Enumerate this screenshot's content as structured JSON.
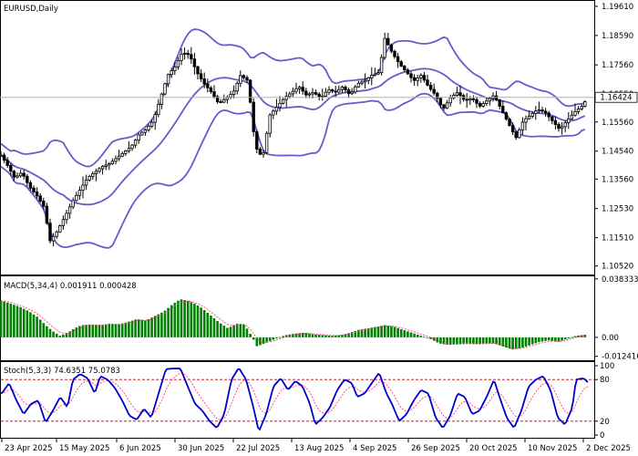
{
  "window": {
    "symbol_label": "EURUSD,Daily"
  },
  "colors": {
    "bull_candle": "#ffffff",
    "bear_candle": "#000000",
    "bollinger": "#6a5acd",
    "macd_hist": "#008000",
    "macd_signal": "#ff3c78",
    "stoch_main": "#0000cd",
    "stoch_signal": "#ff3c78",
    "stoch_levels": "#c00000",
    "price_tag_bg": "#ffffff"
  },
  "chart_data": [
    {
      "type": "candlestick",
      "title": "EURUSD,Daily",
      "ylim": [
        1.1022,
        1.198
      ],
      "y_ticks": [
        "1.19610",
        "1.18590",
        "1.17560",
        "1.16550",
        "1.15560",
        "1.14540",
        "1.13560",
        "1.12530",
        "1.11510",
        "1.10520"
      ],
      "current_price": "1.16424",
      "overlays": [
        "Bollinger Bands"
      ],
      "x_labels": [
        "23 Apr 2025",
        "15 May 2025",
        "6 Jun 2025",
        "30 Jun 2025",
        "22 Jul 2025",
        "13 Aug 2025",
        "4 Sep 2025",
        "26 Sep 2025",
        "20 Oct 2025",
        "10 Nov 2025",
        "2 Dec 2025"
      ],
      "close_path": [
        [
          1,
          1.144
        ],
        [
          8,
          1.1405
        ],
        [
          16,
          1.136
        ],
        [
          24,
          1.138
        ],
        [
          32,
          1.133
        ],
        [
          40,
          1.13
        ],
        [
          48,
          1.126
        ],
        [
          55,
          1.114
        ],
        [
          62,
          1.117
        ],
        [
          72,
          1.123
        ],
        [
          80,
          1.128
        ],
        [
          88,
          1.132
        ],
        [
          96,
          1.136
        ],
        [
          104,
          1.138
        ],
        [
          112,
          1.14
        ],
        [
          120,
          1.141
        ],
        [
          128,
          1.143
        ],
        [
          136,
          1.145
        ],
        [
          144,
          1.147
        ],
        [
          152,
          1.151
        ],
        [
          160,
          1.153
        ],
        [
          168,
          1.156
        ],
        [
          176,
          1.164
        ],
        [
          184,
          1.172
        ],
        [
          192,
          1.175
        ],
        [
          200,
          1.18
        ],
        [
          208,
          1.179
        ],
        [
          216,
          1.173
        ],
        [
          224,
          1.169
        ],
        [
          232,
          1.166
        ],
        [
          240,
          1.162
        ],
        [
          248,
          1.164
        ],
        [
          256,
          1.166
        ],
        [
          264,
          1.172
        ],
        [
          272,
          1.17
        ],
        [
          280,
          1.147
        ],
        [
          288,
          1.143
        ],
        [
          296,
          1.158
        ],
        [
          304,
          1.161
        ],
        [
          312,
          1.164
        ],
        [
          320,
          1.166
        ],
        [
          328,
          1.168
        ],
        [
          336,
          1.165
        ],
        [
          344,
          1.166
        ],
        [
          352,
          1.164
        ],
        [
          360,
          1.167
        ],
        [
          368,
          1.166
        ],
        [
          376,
          1.168
        ],
        [
          384,
          1.165
        ],
        [
          392,
          1.169
        ],
        [
          400,
          1.17
        ],
        [
          408,
          1.172
        ],
        [
          416,
          1.173
        ],
        [
          422,
          1.185
        ],
        [
          430,
          1.18
        ],
        [
          438,
          1.176
        ],
        [
          446,
          1.173
        ],
        [
          454,
          1.17
        ],
        [
          462,
          1.172
        ],
        [
          470,
          1.168
        ],
        [
          478,
          1.165
        ],
        [
          486,
          1.16
        ],
        [
          494,
          1.164
        ],
        [
          502,
          1.166
        ],
        [
          510,
          1.163
        ],
        [
          518,
          1.164
        ],
        [
          526,
          1.161
        ],
        [
          534,
          1.163
        ],
        [
          542,
          1.165
        ],
        [
          550,
          1.16
        ],
        [
          558,
          1.155
        ],
        [
          566,
          1.15
        ],
        [
          574,
          1.156
        ],
        [
          582,
          1.158
        ],
        [
          590,
          1.16
        ],
        [
          598,
          1.159
        ],
        [
          606,
          1.156
        ],
        [
          614,
          1.153
        ],
        [
          622,
          1.156
        ],
        [
          630,
          1.159
        ],
        [
          638,
          1.161
        ],
        [
          645,
          1.1642
        ]
      ]
    },
    {
      "type": "bar",
      "title": "MACD(5,34,4) 0.001911 0.000428",
      "series": [
        {
          "name": "MACD",
          "values": "histogram"
        },
        {
          "name": "Signal",
          "values": "line"
        }
      ],
      "ylim": [
        -0.015,
        0.04
      ],
      "y_ticks": [
        "0.038333",
        "0.00",
        "-0.012416"
      ],
      "values_path": [
        [
          2,
          0.024
        ],
        [
          12,
          0.022
        ],
        [
          22,
          0.02
        ],
        [
          32,
          0.017
        ],
        [
          42,
          0.013
        ],
        [
          50,
          0.008
        ],
        [
          58,
          0.004
        ],
        [
          66,
          0.001
        ],
        [
          74,
          0.003
        ],
        [
          82,
          0.006
        ],
        [
          90,
          0.008
        ],
        [
          100,
          0.0085
        ],
        [
          110,
          0.008
        ],
        [
          120,
          0.009
        ],
        [
          130,
          0.0085
        ],
        [
          140,
          0.01
        ],
        [
          150,
          0.012
        ],
        [
          160,
          0.011
        ],
        [
          170,
          0.014
        ],
        [
          180,
          0.017
        ],
        [
          190,
          0.022
        ],
        [
          198,
          0.025
        ],
        [
          206,
          0.024
        ],
        [
          214,
          0.022
        ],
        [
          222,
          0.019
        ],
        [
          230,
          0.015
        ],
        [
          240,
          0.01
        ],
        [
          250,
          0.006
        ],
        [
          260,
          0.009
        ],
        [
          268,
          0.0085
        ],
        [
          276,
          0.001
        ],
        [
          282,
          -0.006
        ],
        [
          290,
          -0.004
        ],
        [
          298,
          -0.002
        ],
        [
          306,
          0.0
        ],
        [
          314,
          0.0015
        ],
        [
          324,
          0.0025
        ],
        [
          334,
          0.003
        ],
        [
          344,
          0.002
        ],
        [
          354,
          0.0015
        ],
        [
          364,
          0.001
        ],
        [
          374,
          0.0015
        ],
        [
          384,
          0.003
        ],
        [
          394,
          0.005
        ],
        [
          404,
          0.006
        ],
        [
          414,
          0.007
        ],
        [
          422,
          0.008
        ],
        [
          432,
          0.007
        ],
        [
          442,
          0.005
        ],
        [
          452,
          0.003
        ],
        [
          462,
          0.001
        ],
        [
          472,
          -0.001
        ],
        [
          482,
          -0.004
        ],
        [
          492,
          -0.005
        ],
        [
          502,
          -0.0045
        ],
        [
          512,
          -0.004
        ],
        [
          522,
          -0.0045
        ],
        [
          532,
          -0.004
        ],
        [
          542,
          -0.004
        ],
        [
          552,
          -0.006
        ],
        [
          562,
          -0.008
        ],
        [
          572,
          -0.007
        ],
        [
          582,
          -0.005
        ],
        [
          592,
          -0.003
        ],
        [
          602,
          -0.002
        ],
        [
          612,
          -0.003
        ],
        [
          622,
          -0.001
        ],
        [
          632,
          0.001
        ],
        [
          644,
          0.0019
        ]
      ]
    },
    {
      "type": "line",
      "title": "Stoch(5,3,3) 74.6351 75.0783",
      "series": [
        {
          "name": "Main"
        },
        {
          "name": "Signal"
        }
      ],
      "ylim": [
        0,
        100
      ],
      "y_ticks": [
        "100",
        "80",
        "20",
        "0"
      ],
      "levels": [
        80,
        20
      ],
      "main_path": [
        [
          2,
          60
        ],
        [
          10,
          75
        ],
        [
          18,
          50
        ],
        [
          26,
          30
        ],
        [
          34,
          45
        ],
        [
          42,
          50
        ],
        [
          50,
          18
        ],
        [
          58,
          35
        ],
        [
          66,
          55
        ],
        [
          74,
          40
        ],
        [
          80,
          80
        ],
        [
          88,
          88
        ],
        [
          96,
          82
        ],
        [
          104,
          60
        ],
        [
          110,
          85
        ],
        [
          118,
          80
        ],
        [
          126,
          68
        ],
        [
          134,
          50
        ],
        [
          142,
          28
        ],
        [
          150,
          22
        ],
        [
          158,
          38
        ],
        [
          166,
          25
        ],
        [
          174,
          60
        ],
        [
          182,
          95
        ],
        [
          190,
          96
        ],
        [
          198,
          96
        ],
        [
          206,
          70
        ],
        [
          214,
          45
        ],
        [
          222,
          35
        ],
        [
          230,
          20
        ],
        [
          238,
          10
        ],
        [
          246,
          30
        ],
        [
          254,
          80
        ],
        [
          262,
          97
        ],
        [
          270,
          80
        ],
        [
          278,
          40
        ],
        [
          284,
          5
        ],
        [
          292,
          30
        ],
        [
          300,
          70
        ],
        [
          308,
          82
        ],
        [
          316,
          65
        ],
        [
          324,
          78
        ],
        [
          332,
          70
        ],
        [
          340,
          45
        ],
        [
          346,
          15
        ],
        [
          354,
          25
        ],
        [
          362,
          40
        ],
        [
          370,
          65
        ],
        [
          378,
          80
        ],
        [
          386,
          75
        ],
        [
          392,
          55
        ],
        [
          400,
          60
        ],
        [
          408,
          75
        ],
        [
          416,
          90
        ],
        [
          424,
          60
        ],
        [
          430,
          45
        ],
        [
          438,
          20
        ],
        [
          446,
          30
        ],
        [
          454,
          50
        ],
        [
          462,
          65
        ],
        [
          470,
          60
        ],
        [
          478,
          25
        ],
        [
          486,
          10
        ],
        [
          494,
          28
        ],
        [
          502,
          60
        ],
        [
          510,
          55
        ],
        [
          518,
          30
        ],
        [
          526,
          35
        ],
        [
          534,
          55
        ],
        [
          542,
          80
        ],
        [
          548,
          55
        ],
        [
          556,
          25
        ],
        [
          564,
          10
        ],
        [
          572,
          35
        ],
        [
          580,
          70
        ],
        [
          588,
          80
        ],
        [
          596,
          85
        ],
        [
          604,
          65
        ],
        [
          612,
          25
        ],
        [
          620,
          15
        ],
        [
          628,
          40
        ],
        [
          632,
          80
        ],
        [
          640,
          82
        ],
        [
          646,
          75
        ]
      ]
    }
  ]
}
